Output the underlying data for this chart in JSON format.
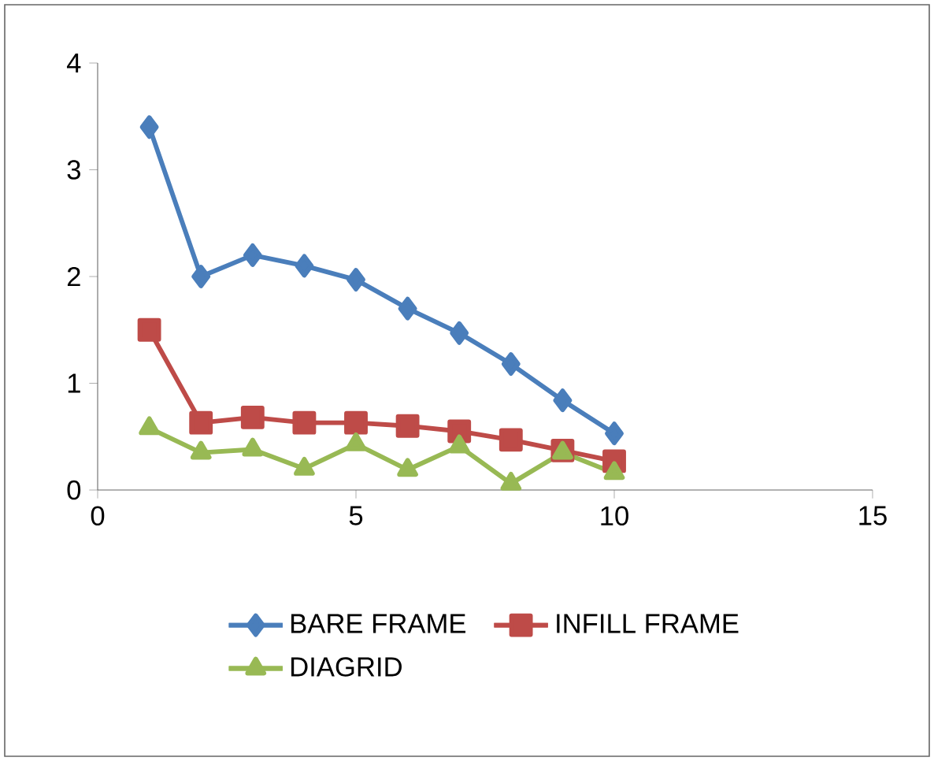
{
  "chart_data": {
    "type": "line",
    "xlim": [
      0,
      15
    ],
    "xticks": [
      0,
      5,
      10,
      15
    ],
    "ylim": [
      0,
      4
    ],
    "yticks": [
      0,
      1,
      2,
      3,
      4
    ],
    "grid": false,
    "legend": "bottom",
    "line_style": "solid",
    "series": [
      {
        "name": "BARE FRAME",
        "color": "#4a7ebb",
        "marker": "diamond",
        "x": [
          1,
          2,
          3,
          4,
          5,
          6,
          7,
          8,
          9,
          10
        ],
        "values": [
          3.4,
          2.0,
          2.2,
          2.1,
          1.97,
          1.7,
          1.47,
          1.18,
          0.84,
          0.53
        ]
      },
      {
        "name": "INFILL FRAME",
        "color": "#be4b48",
        "marker": "square",
        "x": [
          1,
          2,
          3,
          4,
          5,
          6,
          7,
          8,
          9,
          10
        ],
        "values": [
          1.5,
          0.63,
          0.68,
          0.63,
          0.63,
          0.6,
          0.55,
          0.47,
          0.37,
          0.27
        ]
      },
      {
        "name": "DIAGRID",
        "color": "#98b954",
        "marker": "triangle",
        "x": [
          1,
          2,
          3,
          4,
          5,
          6,
          7,
          8,
          9,
          10
        ],
        "values": [
          0.58,
          0.35,
          0.38,
          0.2,
          0.43,
          0.19,
          0.41,
          0.06,
          0.35,
          0.16
        ]
      }
    ]
  }
}
